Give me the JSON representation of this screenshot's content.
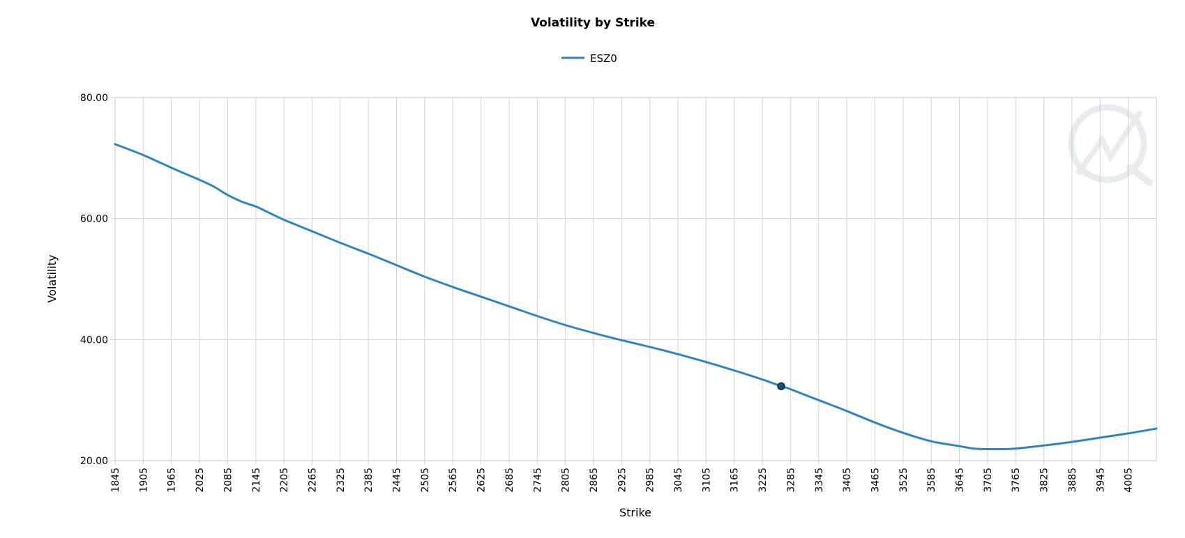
{
  "chart_data": {
    "type": "line",
    "title": "Volatility by Strike",
    "xlabel": "Strike",
    "ylabel": "Volatility",
    "xlim": [
      1845,
      4065
    ],
    "ylim": [
      20,
      80
    ],
    "y_ticks": [
      "20.00",
      "40.00",
      "60.00",
      "80.00"
    ],
    "y_tick_values": [
      20,
      40,
      60,
      80
    ],
    "x_ticks": [
      "1845",
      "1905",
      "1965",
      "2025",
      "2085",
      "2145",
      "2205",
      "2265",
      "2325",
      "2385",
      "2445",
      "2505",
      "2565",
      "2625",
      "2685",
      "2745",
      "2805",
      "2865",
      "2925",
      "2985",
      "3045",
      "3105",
      "3165",
      "3225",
      "3285",
      "3345",
      "3405",
      "3465",
      "3525",
      "3585",
      "3645",
      "3705",
      "3765",
      "3825",
      "3885",
      "3945",
      "4005"
    ],
    "grid": true,
    "legend_position": "top-center",
    "series": [
      {
        "name": "ESZ0",
        "color": "#2e86c1",
        "x": [
          1845,
          1905,
          1965,
          2025,
          2055,
          2085,
          2115,
          2145,
          2175,
          2205,
          2265,
          2325,
          2385,
          2445,
          2505,
          2565,
          2625,
          2685,
          2745,
          2805,
          2865,
          2925,
          2985,
          3045,
          3105,
          3165,
          3225,
          3265,
          3285,
          3345,
          3405,
          3465,
          3525,
          3585,
          3645,
          3675,
          3705,
          3735,
          3765,
          3825,
          3885,
          3945,
          4005,
          4065
        ],
        "values": [
          72.3,
          70.5,
          68.4,
          66.4,
          65.3,
          63.9,
          62.8,
          62.0,
          60.9,
          59.8,
          57.9,
          56.0,
          54.2,
          52.3,
          50.4,
          48.7,
          47.1,
          45.5,
          43.9,
          42.4,
          41.1,
          39.9,
          38.8,
          37.6,
          36.3,
          34.9,
          33.4,
          32.3,
          31.8,
          30.0,
          28.2,
          26.3,
          24.6,
          23.2,
          22.4,
          22.0,
          21.9,
          21.9,
          22.0,
          22.5,
          23.1,
          23.8,
          24.5,
          25.3
        ],
        "highlight": {
          "x": 3265,
          "y": 32.3
        }
      }
    ]
  }
}
